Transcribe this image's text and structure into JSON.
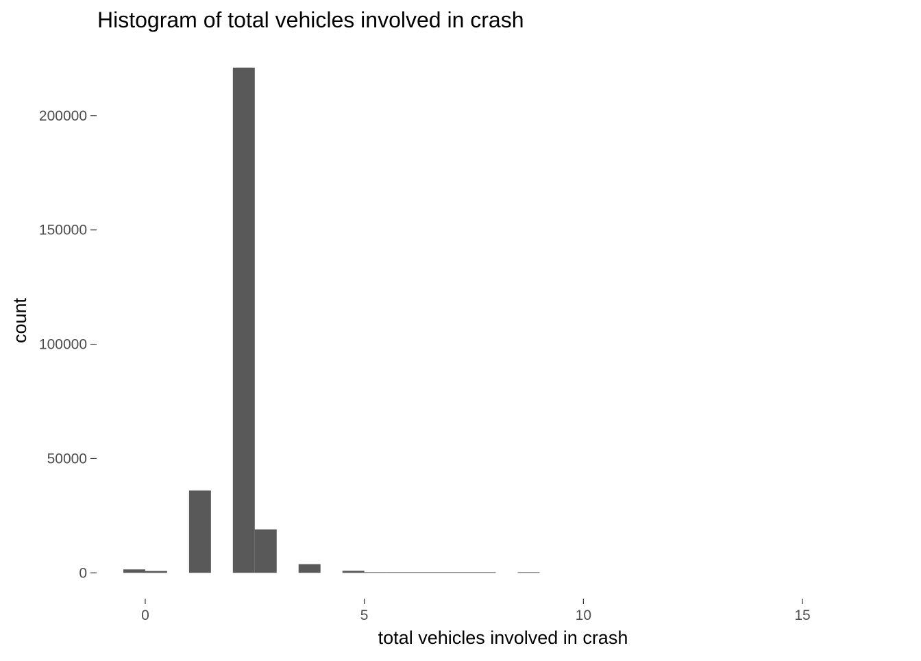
{
  "chart_data": {
    "type": "bar",
    "title": "Histogram of total vehicles involved in crash",
    "xlabel": "total vehicles involved in crash",
    "ylabel": "count",
    "bin_width": 0.5,
    "bins": [
      {
        "x0": -0.5,
        "x1": 0.0,
        "count": 1500
      },
      {
        "x0": 0.0,
        "x1": 0.5,
        "count": 800
      },
      {
        "x0": 1.0,
        "x1": 1.5,
        "count": 36000
      },
      {
        "x0": 2.0,
        "x1": 2.5,
        "count": 221000
      },
      {
        "x0": 2.5,
        "x1": 3.0,
        "count": 19000
      },
      {
        "x0": 3.5,
        "x1": 4.0,
        "count": 3800
      },
      {
        "x0": 4.5,
        "x1": 5.0,
        "count": 900
      },
      {
        "x0": 5.0,
        "x1": 5.5,
        "count": 200
      },
      {
        "x0": 5.5,
        "x1": 6.0,
        "count": 150
      },
      {
        "x0": 6.0,
        "x1": 6.5,
        "count": 100
      },
      {
        "x0": 6.5,
        "x1": 7.0,
        "count": 60
      },
      {
        "x0": 7.0,
        "x1": 7.5,
        "count": 40
      },
      {
        "x0": 7.5,
        "x1": 8.0,
        "count": 30
      },
      {
        "x0": 8.5,
        "x1": 9.0,
        "count": 20
      }
    ],
    "xlim": [
      -1.0,
      16.0
    ],
    "ylim": [
      -11000,
      232000
    ],
    "x_ticks": [
      0,
      5,
      10,
      15
    ],
    "x_tick_labels": [
      "0",
      "5",
      "10",
      "15"
    ],
    "y_ticks": [
      0,
      50000,
      100000,
      150000,
      200000
    ],
    "y_tick_labels": [
      "0",
      "50000",
      "100000",
      "150000",
      "200000"
    ],
    "grid": false,
    "legend": "none",
    "bar_color": "#595959"
  }
}
